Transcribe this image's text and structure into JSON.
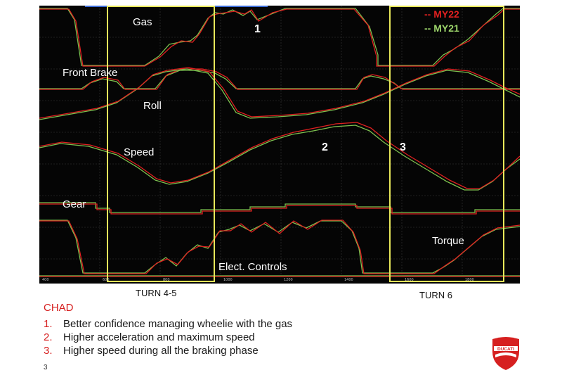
{
  "legend": {
    "my22": "-- MY22",
    "my21": "-- MY21"
  },
  "channels": {
    "gas": "Gas",
    "front_brake": "Front Brake",
    "roll": "Roll",
    "speed": "Speed",
    "gear": "Gear",
    "torque": "Torque",
    "elect_controls": "Elect. Controls"
  },
  "annotations": {
    "one": "1",
    "two": "2",
    "three": "3"
  },
  "turns": {
    "turn_4_5": "TURN 4-5",
    "turn_6": "TURN 6"
  },
  "notes": {
    "title": "CHAD",
    "items": [
      {
        "num": "1.",
        "text": "Better confidence managing wheelie with the gas"
      },
      {
        "num": "2.",
        "text": "Higher acceleration and maximum speed"
      },
      {
        "num": "3.",
        "text": "Higher speed during all the braking phase"
      }
    ]
  },
  "page_number": "3",
  "colors": {
    "my22": "#e02020",
    "my21": "#7cc04f",
    "highlight": "#e8e85a",
    "background": "#050505"
  },
  "chart_data": {
    "type": "line",
    "x_ticks": [
      "400",
      "600",
      "800",
      "1000",
      "1200",
      "1400",
      "1600",
      "1800"
    ],
    "series": [
      {
        "name": "MY22"
      },
      {
        "name": "MY21"
      }
    ],
    "channels": [
      {
        "name": "Speed",
        "x": [
          400,
          500,
          600,
          700,
          800,
          900,
          1000,
          1100,
          1200,
          1300,
          1400,
          1450,
          1500,
          1550,
          1600,
          1650,
          1700,
          1750,
          1800,
          1850
        ],
        "values": [
          0.52,
          0.5,
          0.42,
          0.3,
          0.2,
          0.18,
          0.32,
          0.48,
          0.58,
          0.66,
          0.75,
          0.73,
          0.62,
          0.5,
          0.38,
          0.25,
          0.18,
          0.2,
          0.32,
          0.45
        ]
      },
      {
        "name": "Roll",
        "x": [
          400,
          500,
          600,
          700,
          750,
          800,
          900,
          1000,
          1100,
          1200,
          1300,
          1400,
          1500,
          1600,
          1700,
          1800,
          1850
        ],
        "values": [
          0.2,
          0.3,
          0.45,
          0.75,
          0.8,
          0.82,
          0.55,
          0.3,
          0.32,
          0.36,
          0.42,
          0.5,
          0.6,
          0.75,
          0.82,
          0.75,
          0.62
        ]
      }
    ]
  }
}
